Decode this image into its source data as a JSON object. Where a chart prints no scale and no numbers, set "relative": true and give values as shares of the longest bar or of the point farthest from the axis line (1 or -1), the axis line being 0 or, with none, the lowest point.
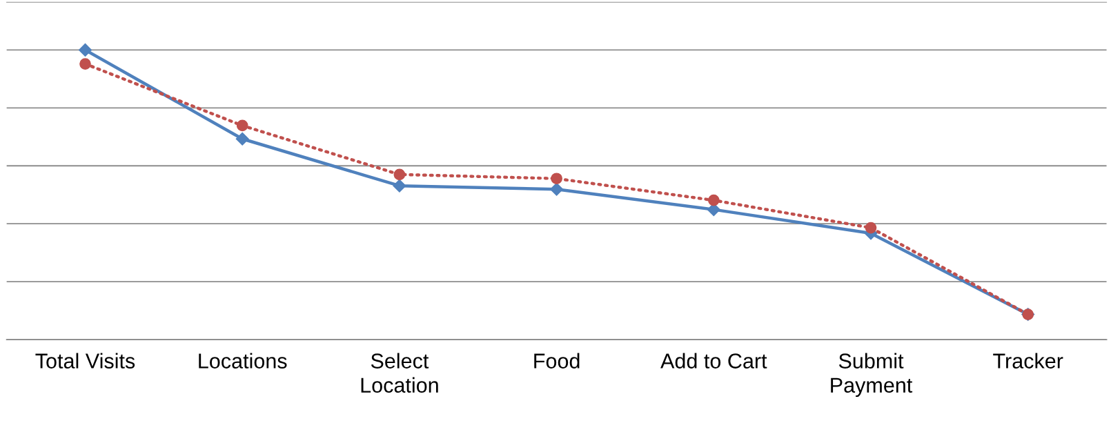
{
  "chart_data": {
    "type": "line",
    "relative": true,
    "grid": "y",
    "categories": [
      "Total Visits",
      "Locations",
      "Select\nLocation",
      "Food",
      "Add to Cart",
      "Submit\nPayment",
      "Tracker"
    ],
    "series": [
      {
        "color": "#4f81bd",
        "marker": "diamond",
        "line_style": "solid",
        "values": [
          1,
          0.693,
          0.531,
          0.519,
          0.449,
          0.367,
          0.087
        ]
      },
      {
        "color": "#c0504d",
        "marker": "circle",
        "line_style": "dotted",
        "values": [
          0.952,
          0.739,
          0.57,
          0.556,
          0.481,
          0.386,
          0.087
        ]
      }
    ]
  }
}
